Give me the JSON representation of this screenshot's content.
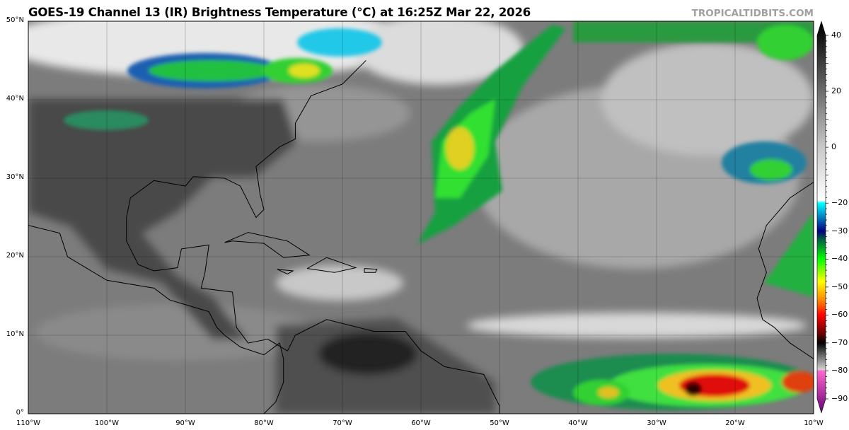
{
  "title": "GOES-19 Channel 13 (IR) Brightness Temperature (°C) at 16:25Z Mar 22, 2026",
  "watermark": "TROPICALTIDBITS.COM",
  "map": {
    "projection": "equirectangular",
    "lon_range": [
      -110,
      -10
    ],
    "lat_range": [
      0,
      50
    ],
    "lat_labels": [
      "0°",
      "10°N",
      "20°N",
      "30°N",
      "40°N",
      "50°N"
    ],
    "lon_labels": [
      "110°W",
      "100°W",
      "90°W",
      "80°W",
      "70°W",
      "60°W",
      "50°W",
      "40°W",
      "30°W",
      "20°W",
      "10°W"
    ],
    "gridlines": true
  },
  "colorbar": {
    "range": [
      -90,
      40
    ],
    "ticks": [
      "40",
      "20",
      "0",
      "−20",
      "−30",
      "−40",
      "−50",
      "−60",
      "−70",
      "−80",
      "−90"
    ],
    "tick_values": [
      40,
      20,
      0,
      -20,
      -30,
      -40,
      -50,
      -60,
      -70,
      -80,
      -90
    ],
    "stops": [
      {
        "v": 45,
        "c": "#000000"
      },
      {
        "v": 40,
        "c": "#101010"
      },
      {
        "v": 0,
        "c": "#c8c8c8"
      },
      {
        "v": -19,
        "c": "#ffffff"
      },
      {
        "v": -20,
        "c": "#00ffff"
      },
      {
        "v": -25,
        "c": "#0080c0"
      },
      {
        "v": -30,
        "c": "#000080"
      },
      {
        "v": -33,
        "c": "#006040"
      },
      {
        "v": -40,
        "c": "#00ff00"
      },
      {
        "v": -48,
        "c": "#ffff00"
      },
      {
        "v": -55,
        "c": "#ff8000"
      },
      {
        "v": -60,
        "c": "#ff0000"
      },
      {
        "v": -67,
        "c": "#600000"
      },
      {
        "v": -70,
        "c": "#000000"
      },
      {
        "v": -74,
        "c": "#606060"
      },
      {
        "v": -79.5,
        "c": "#d0d0d0"
      },
      {
        "v": -80,
        "c": "#ff66cc"
      },
      {
        "v": -95,
        "c": "#660077"
      }
    ]
  }
}
